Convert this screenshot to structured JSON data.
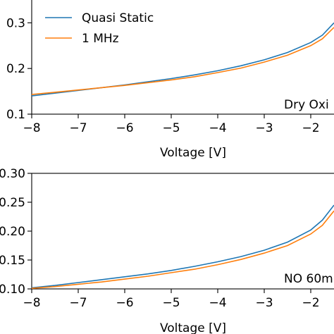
{
  "chart_data": [
    {
      "type": "line",
      "xlabel": "Voltage [V]",
      "ylabel": "",
      "xlim": [
        -8,
        -1.5
      ],
      "ylim": [
        0.1,
        0.35
      ],
      "xticks": [
        -8,
        -7,
        -6,
        -5,
        -4,
        -3,
        -2
      ],
      "xtick_labels": [
        "−8",
        "−7",
        "−6",
        "−5",
        "−4",
        "−3",
        "−2"
      ],
      "yticks": [
        0.1,
        0.2,
        0.3
      ],
      "ytick_labels": [
        "0.1",
        "0.2",
        "0.3"
      ],
      "annotation": "Dry Oxi",
      "legend": "top-left",
      "grid": false,
      "series": [
        {
          "name": "Quasi Static",
          "color": "#1f77b4",
          "x": [
            -8,
            -7.5,
            -7,
            -6.5,
            -6,
            -5.5,
            -5,
            -4.5,
            -4,
            -3.5,
            -3,
            -2.5,
            -2,
            -1.75,
            -1.5
          ],
          "y": [
            0.14,
            0.146,
            0.152,
            0.158,
            0.164,
            0.171,
            0.178,
            0.186,
            0.195,
            0.206,
            0.219,
            0.235,
            0.257,
            0.273,
            0.3
          ]
        },
        {
          "name": "1 MHz",
          "color": "#ff7f0e",
          "x": [
            -8,
            -7.5,
            -7,
            -6.5,
            -6,
            -5.5,
            -5,
            -4.5,
            -4,
            -3.5,
            -3,
            -2.5,
            -2,
            -1.75,
            -1.5
          ],
          "y": [
            0.143,
            0.148,
            0.153,
            0.158,
            0.163,
            0.169,
            0.175,
            0.182,
            0.191,
            0.201,
            0.214,
            0.229,
            0.25,
            0.265,
            0.29
          ]
        }
      ]
    },
    {
      "type": "line",
      "xlabel": "Voltage [V]",
      "ylabel": "",
      "xlim": [
        -8,
        -1.5
      ],
      "ylim": [
        0.1,
        0.3
      ],
      "xticks": [
        -8,
        -7,
        -6,
        -5,
        -4,
        -3,
        -2
      ],
      "xtick_labels": [
        "−8",
        "−7",
        "−6",
        "−5",
        "−4",
        "−3",
        "−2"
      ],
      "yticks": [
        0.1,
        0.15,
        0.2,
        0.25,
        0.3
      ],
      "ytick_labels": [
        "0.10",
        "0.15",
        "0.20",
        "0.25",
        "0.30"
      ],
      "annotation": "NO 60m",
      "grid": false,
      "series": [
        {
          "name": "Quasi Static",
          "color": "#1f77b4",
          "x": [
            -8,
            -7.5,
            -7,
            -6.5,
            -6,
            -5.5,
            -5,
            -4.5,
            -4,
            -3.5,
            -3,
            -2.5,
            -2,
            -1.75,
            -1.5
          ],
          "y": [
            0.102,
            0.106,
            0.111,
            0.116,
            0.121,
            0.126,
            0.132,
            0.139,
            0.147,
            0.156,
            0.167,
            0.181,
            0.202,
            0.219,
            0.245
          ]
        },
        {
          "name": "1 MHz",
          "color": "#ff7f0e",
          "x": [
            -8,
            -7.5,
            -7,
            -6.5,
            -6,
            -5.5,
            -5,
            -4.5,
            -4,
            -3.5,
            -3,
            -2.5,
            -2,
            -1.75,
            -1.5
          ],
          "y": [
            0.101,
            0.104,
            0.108,
            0.112,
            0.117,
            0.122,
            0.128,
            0.134,
            0.142,
            0.151,
            0.162,
            0.175,
            0.195,
            0.21,
            0.235
          ]
        }
      ]
    }
  ]
}
